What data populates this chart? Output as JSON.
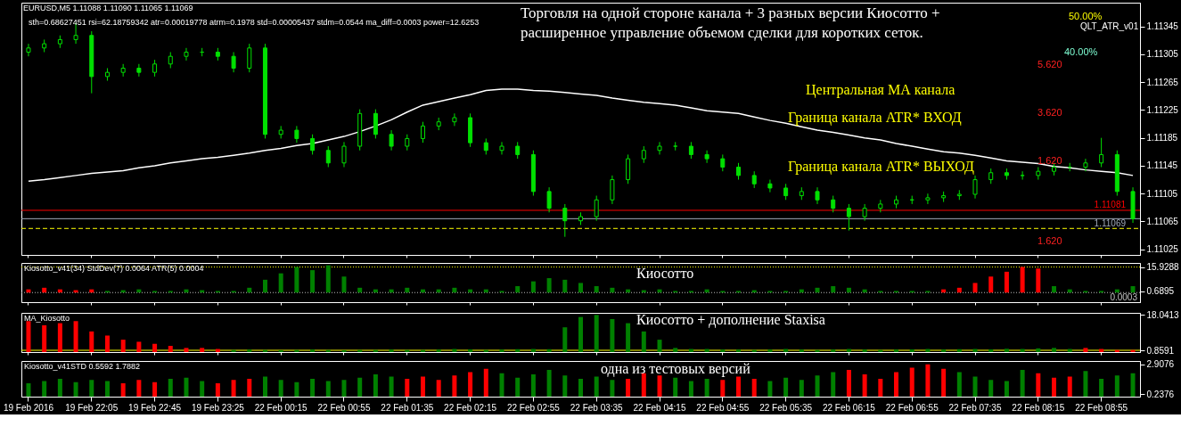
{
  "chart_data": [
    {
      "type": "candlestick",
      "title": "Торговля на одной стороне канала + 3 разных версии Киосотто +",
      "subtitle": "расширенное управление объемом сделки для коротких сеток.",
      "categories": [
        "19 Feb 2016",
        null,
        null,
        null,
        "19 Feb 22:05",
        null,
        null,
        null,
        "19 Feb 22:45",
        null,
        null,
        null,
        "19 Feb 23:25",
        null,
        null,
        null,
        "22 Feb 00:15",
        null,
        null,
        null,
        "22 Feb 00:55",
        null,
        null,
        null,
        "22 Feb 01:35",
        null,
        null,
        null,
        "22 Feb 02:15",
        null,
        null,
        null,
        "22 Feb 02:55",
        null,
        null,
        null,
        "22 Feb 03:35",
        null,
        null,
        null,
        "22 Feb 04:15",
        null,
        null,
        null,
        "22 Feb 04:55",
        null,
        null,
        null,
        "22 Feb 05:35",
        null,
        null,
        null,
        "22 Feb 06:15",
        null,
        null,
        null,
        "22 Feb 06:55",
        null,
        null,
        null,
        "22 Feb 07:35",
        null,
        null,
        null,
        "22 Feb 08:15",
        null,
        null,
        null,
        "22 Feb 08:55",
        null,
        null
      ],
      "ohlc": [
        [
          1.11308,
          1.1132,
          1.11302,
          1.11314
        ],
        [
          1.11314,
          1.11326,
          1.11308,
          1.1132
        ],
        [
          1.1132,
          1.11332,
          1.11314,
          1.11326
        ],
        [
          1.11326,
          1.1135,
          1.1132,
          1.11332
        ],
        [
          1.11332,
          1.11338,
          1.11249,
          1.11273
        ],
        [
          1.11273,
          1.11285,
          1.11267,
          1.11279
        ],
        [
          1.11279,
          1.11291,
          1.11273,
          1.11285
        ],
        [
          1.11285,
          1.11291,
          1.11273,
          1.11279
        ],
        [
          1.11279,
          1.11297,
          1.11273,
          1.11291
        ],
        [
          1.11291,
          1.11308,
          1.11285,
          1.11302
        ],
        [
          1.11302,
          1.11314,
          1.11296,
          1.11308
        ],
        [
          1.11308,
          1.11314,
          1.11302,
          1.11308
        ],
        [
          1.11308,
          1.11314,
          1.11296,
          1.11302
        ],
        [
          1.11302,
          1.11308,
          1.11279,
          1.11285
        ],
        [
          1.11285,
          1.1132,
          1.11279,
          1.11314
        ],
        [
          1.11314,
          1.1132,
          1.11184,
          1.1119
        ],
        [
          1.1119,
          1.11202,
          1.11184,
          1.11196
        ],
        [
          1.11196,
          1.11202,
          1.11178,
          1.11184
        ],
        [
          1.11184,
          1.1119,
          1.11161,
          1.11167
        ],
        [
          1.11167,
          1.11173,
          1.11143,
          1.11149
        ],
        [
          1.11149,
          1.11179,
          1.11143,
          1.11173
        ],
        [
          1.11173,
          1.11226,
          1.11167,
          1.1122
        ],
        [
          1.1122,
          1.11226,
          1.11184,
          1.1119
        ],
        [
          1.1119,
          1.11196,
          1.11167,
          1.11173
        ],
        [
          1.11173,
          1.1119,
          1.11167,
          1.11184
        ],
        [
          1.11184,
          1.11208,
          1.11178,
          1.11202
        ],
        [
          1.11202,
          1.11214,
          1.11196,
          1.11208
        ],
        [
          1.11208,
          1.1122,
          1.11202,
          1.11214
        ],
        [
          1.11214,
          1.1122,
          1.11172,
          1.11178
        ],
        [
          1.11178,
          1.11184,
          1.11161,
          1.11167
        ],
        [
          1.11167,
          1.11179,
          1.11161,
          1.11173
        ],
        [
          1.11173,
          1.11179,
          1.11155,
          1.11161
        ],
        [
          1.11161,
          1.11167,
          1.11102,
          1.11108
        ],
        [
          1.11108,
          1.11114,
          1.11078,
          1.11084
        ],
        [
          1.11084,
          1.1109,
          1.11043,
          1.11066
        ],
        [
          1.11066,
          1.11078,
          1.1106,
          1.11072
        ],
        [
          1.11072,
          1.11102,
          1.11066,
          1.11096
        ],
        [
          1.11096,
          1.11131,
          1.1109,
          1.11125
        ],
        [
          1.11125,
          1.11161,
          1.11119,
          1.11155
        ],
        [
          1.11155,
          1.11173,
          1.11149,
          1.11167
        ],
        [
          1.11167,
          1.11179,
          1.11161,
          1.11173
        ],
        [
          1.11173,
          1.11179,
          1.11167,
          1.11173
        ],
        [
          1.11173,
          1.11179,
          1.11155,
          1.11161
        ],
        [
          1.11161,
          1.11167,
          1.11149,
          1.11155
        ],
        [
          1.11155,
          1.11161,
          1.11137,
          1.11143
        ],
        [
          1.11143,
          1.11149,
          1.11125,
          1.11131
        ],
        [
          1.11131,
          1.11137,
          1.11113,
          1.11119
        ],
        [
          1.11119,
          1.11125,
          1.11107,
          1.11113
        ],
        [
          1.11113,
          1.11119,
          1.11096,
          1.11102
        ],
        [
          1.11102,
          1.11114,
          1.11096,
          1.11108
        ],
        [
          1.11108,
          1.11114,
          1.1109,
          1.11096
        ],
        [
          1.11096,
          1.11102,
          1.11078,
          1.11084
        ],
        [
          1.11084,
          1.1109,
          1.11052,
          1.11072
        ],
        [
          1.11072,
          1.1109,
          1.11066,
          1.11084
        ],
        [
          1.11084,
          1.11096,
          1.11078,
          1.1109
        ],
        [
          1.1109,
          1.11102,
          1.11084,
          1.11096
        ],
        [
          1.11096,
          1.11102,
          1.1109,
          1.11096
        ],
        [
          1.11096,
          1.11105,
          1.1109,
          1.11099
        ],
        [
          1.11099,
          1.11108,
          1.11093,
          1.11102
        ],
        [
          1.11102,
          1.1111,
          1.11096,
          1.11104
        ],
        [
          1.11104,
          1.11131,
          1.11098,
          1.11125
        ],
        [
          1.11125,
          1.11141,
          1.11119,
          1.11135
        ],
        [
          1.11135,
          1.11141,
          1.11125,
          1.11131
        ],
        [
          1.11131,
          1.11137,
          1.11125,
          1.11131
        ],
        [
          1.11131,
          1.11143,
          1.11125,
          1.11137
        ],
        [
          1.11137,
          1.11149,
          1.11131,
          1.11143
        ],
        [
          1.11143,
          1.11149,
          1.11137,
          1.11143
        ],
        [
          1.11143,
          1.11155,
          1.11137,
          1.11149
        ],
        [
          1.11149,
          1.11185,
          1.11143,
          1.11161
        ],
        [
          1.11161,
          1.11167,
          1.11102,
          1.11108
        ],
        [
          1.11108,
          1.11114,
          1.11063,
          1.11069
        ]
      ],
      "color": "#00e000",
      "series": [
        {
          "type": "line",
          "color": "#ffffff",
          "values": [
            1.11123,
            1.11125,
            1.11128,
            1.11131,
            1.11134,
            1.11136,
            1.11138,
            1.11142,
            1.11145,
            1.11149,
            1.11152,
            1.11155,
            1.11157,
            1.1116,
            1.11163,
            1.11167,
            1.1117,
            1.11174,
            1.11177,
            1.11182,
            1.11187,
            1.11194,
            1.11202,
            1.11211,
            1.11222,
            1.11232,
            1.11237,
            1.11242,
            1.11247,
            1.11253,
            1.11255,
            1.11255,
            1.11253,
            1.11252,
            1.1125,
            1.11248,
            1.11246,
            1.11242,
            1.11239,
            1.11236,
            1.11234,
            1.11232,
            1.11228,
            1.11224,
            1.11222,
            1.1122,
            1.11215,
            1.1121,
            1.11206,
            1.11201,
            1.11196,
            1.11193,
            1.11189,
            1.11185,
            1.11182,
            1.11177,
            1.11173,
            1.11169,
            1.11165,
            1.11163,
            1.1116,
            1.11156,
            1.11152,
            1.1115,
            1.11148,
            1.11144,
            1.11142,
            1.11139,
            1.11137,
            1.11135,
            1.11131
          ]
        }
      ],
      "ylim": [
        1.11017,
        1.11379
      ],
      "yticks": [
        1.11025,
        1.11065,
        1.11105,
        1.11145,
        1.11185,
        1.11225,
        1.11265,
        1.11305,
        1.11345
      ],
      "ref_lines": [
        {
          "axis": "y",
          "value": 1.11081,
          "label": "1.11081",
          "color": "#ff0000",
          "line_style": "solid"
        },
        {
          "axis": "y",
          "value": 1.11069,
          "label": "1.11069",
          "color": "#a0a8b8",
          "line_style": "solid"
        },
        {
          "axis": "y",
          "value": 1.11055,
          "color": "#ffff00",
          "line_style": "dashed"
        }
      ],
      "annotations": [
        "EURUSD,M5  1.11088 1.11090 1.11065 1.11069",
        "sth=0.68627451 rsi=62.18759342 atr=0.00019778 atrm=0.1978 std=0.00005437 stdm=0.0544 ma_diff=0.0003 power=12.6253",
        "Центральная МА канала",
        "Граница канала ATR*  ВХОД",
        "Граница канала ATR*  ВЫХОД",
        "50.00%",
        "40.00%",
        "5.620",
        "3.620",
        "1.620",
        "1.620",
        "QLT_ATR_v01"
      ],
      "tick_labels": "y",
      "grid": false
    },
    {
      "type": "bar",
      "title": "Kiosotto_v41(34)  StdDev(7) 0.0064  ATR(5) 0.0004",
      "values": [
        2,
        3,
        2,
        1.5,
        2,
        1,
        1.5,
        2,
        1,
        1,
        2,
        1.5,
        1,
        1,
        3,
        8,
        12,
        16,
        14,
        17,
        10,
        3,
        2,
        2,
        3,
        2,
        2,
        3,
        2,
        2,
        1,
        4,
        7,
        9,
        8,
        6,
        4,
        3,
        2,
        1.5,
        2,
        1,
        1,
        2,
        1,
        1,
        1.5,
        1,
        1,
        2,
        3,
        4,
        3,
        2,
        1,
        1,
        1,
        1,
        2,
        3,
        6,
        10,
        13,
        16,
        15,
        4,
        2,
        1,
        1,
        2,
        4
      ],
      "colors": [
        "#ff0000",
        "#ff0000",
        "#ff0000",
        "#ff0000",
        "#ff0000",
        "#008000",
        "#008000",
        "#008000",
        "#008000",
        "#008000",
        "#008000",
        "#008000",
        "#008000",
        "#008000",
        "#008000",
        "#008000",
        "#008000",
        "#008000",
        "#008000",
        "#008000",
        "#008000",
        "#008000",
        "#008000",
        "#008000",
        "#008000",
        "#008000",
        "#008000",
        "#008000",
        "#008000",
        "#008000",
        "#008000",
        "#008000",
        "#008000",
        "#008000",
        "#008000",
        "#008000",
        "#008000",
        "#008000",
        "#008000",
        "#008000",
        "#008000",
        "#008000",
        "#008000",
        "#008000",
        "#008000",
        "#008000",
        "#008000",
        "#008000",
        "#008000",
        "#008000",
        "#008000",
        "#008000",
        "#008000",
        "#008000",
        "#008000",
        "#008000",
        "#008000",
        "#008000",
        "#ff0000",
        "#ff0000",
        "#ff0000",
        "#ff0000",
        "#ff0000",
        "#ff0000",
        "#ff0000",
        "#008000",
        "#008000",
        "#008000",
        "#008000",
        "#008000",
        "#008000"
      ],
      "ylim": [
        -6,
        18.5
      ],
      "yticks": [
        15.9288,
        0.6895
      ],
      "ref_lines": [
        {
          "axis": "y",
          "value": 0.0003,
          "label": "0.0003",
          "color": "#c0c0c0",
          "line_style": "dotted"
        },
        {
          "axis": "y",
          "value": 15.9288,
          "color": "#ffff00",
          "line_style": "dotted"
        }
      ],
      "annotations": [
        "Киосотто"
      ],
      "tick_labels": "y",
      "grid": false
    },
    {
      "type": "bar",
      "title": "MA_Kiosotto",
      "values": [
        15,
        13,
        14,
        15,
        10,
        8,
        6,
        5,
        4,
        3,
        2,
        2,
        1.5,
        1,
        1.2,
        1,
        0.9,
        1,
        1.2,
        1,
        0.9,
        1,
        1,
        1.2,
        1,
        1,
        1.2,
        1.5,
        1.3,
        1,
        1.2,
        1.4,
        1.5,
        1.4,
        12,
        17,
        18,
        16,
        14,
        10,
        6,
        2,
        1.5,
        1.5,
        1.2,
        1.2,
        1,
        1.2,
        1.5,
        1.2,
        1,
        1.2,
        1.5,
        1.2,
        1,
        1.2,
        1.3,
        1.5,
        1.2,
        1.4,
        1.5,
        1.3,
        1.6,
        1.5,
        1.8,
        2,
        1.5,
        2,
        1.5,
        1,
        1
      ],
      "colors": [
        "#ff0000",
        "#ff0000",
        "#ff0000",
        "#ff0000",
        "#ff0000",
        "#ff0000",
        "#ff0000",
        "#ff0000",
        "#ff0000",
        "#ff0000",
        "#ff0000",
        "#ff0000",
        "#ff0000",
        "#008000",
        "#008000",
        "#008000",
        "#008000",
        "#008000",
        "#008000",
        "#008000",
        "#008000",
        "#008000",
        "#008000",
        "#008000",
        "#008000",
        "#008000",
        "#008000",
        "#008000",
        "#008000",
        "#008000",
        "#008000",
        "#008000",
        "#008000",
        "#008000",
        "#008000",
        "#008000",
        "#008000",
        "#008000",
        "#008000",
        "#008000",
        "#008000",
        "#008000",
        "#008000",
        "#008000",
        "#008000",
        "#008000",
        "#008000",
        "#008000",
        "#008000",
        "#008000",
        "#008000",
        "#008000",
        "#008000",
        "#008000",
        "#008000",
        "#008000",
        "#008000",
        "#008000",
        "#008000",
        "#008000",
        "#008000",
        "#008000",
        "#008000",
        "#008000",
        "#008000",
        "#008000",
        "#008000",
        "#ff0000",
        "#ff0000",
        "#ff0000",
        "#ff0000"
      ],
      "ylim": [
        0,
        19
      ],
      "yticks": [
        0.8591,
        18.0413
      ],
      "ref_lines": [
        {
          "axis": "y",
          "value": 0.8591,
          "color": "#ffff00",
          "line_style": "solid"
        }
      ],
      "annotations": [
        "Киосотто + дополнение Staxisa"
      ],
      "tick_labels": "y",
      "grid": false
    },
    {
      "type": "bar",
      "title": "Kiosotto_v41STD 0.5592 1.7882",
      "values": [
        1.2,
        1.4,
        1.6,
        1.3,
        1.5,
        1.4,
        1.2,
        1.5,
        1.3,
        1.6,
        1.7,
        1.4,
        1.2,
        1.5,
        1.6,
        1.8,
        1.5,
        1.3,
        1.6,
        1.4,
        1.5,
        1.7,
        2.0,
        1.8,
        1.6,
        1.8,
        1.5,
        1.9,
        2.2,
        2.5,
        2.1,
        1.7,
        2.0,
        2.4,
        1.9,
        1.6,
        1.8,
        1.5,
        1.6,
        2.1,
        1.9,
        1.7,
        1.4,
        1.6,
        1.5,
        1.8,
        1.6,
        1.4,
        1.7,
        1.5,
        1.9,
        2.2,
        2.4,
        2.0,
        1.6,
        2.2,
        2.6,
        2.9,
        2.5,
        2.2,
        1.8,
        1.5,
        1.4,
        2.4,
        2.1,
        1.7,
        1.8,
        2.3,
        1.6,
        1.9,
        2.1
      ],
      "colors": [
        "#008000",
        "#008000",
        "#008000",
        "#008000",
        "#008000",
        "#008000",
        "#ff0000",
        "#ff0000",
        "#ff0000",
        "#008000",
        "#008000",
        "#008000",
        "#ff0000",
        "#ff0000",
        "#ff0000",
        "#008000",
        "#008000",
        "#008000",
        "#008000",
        "#008000",
        "#008000",
        "#008000",
        "#008000",
        "#008000",
        "#ff0000",
        "#ff0000",
        "#ff0000",
        "#ff0000",
        "#ff0000",
        "#ff0000",
        "#008000",
        "#008000",
        "#008000",
        "#008000",
        "#008000",
        "#008000",
        "#008000",
        "#008000",
        "#ff0000",
        "#ff0000",
        "#ff0000",
        "#008000",
        "#008000",
        "#008000",
        "#ff0000",
        "#ff0000",
        "#ff0000",
        "#008000",
        "#008000",
        "#008000",
        "#008000",
        "#008000",
        "#ff0000",
        "#ff0000",
        "#ff0000",
        "#ff0000",
        "#ff0000",
        "#ff0000",
        "#ff0000",
        "#008000",
        "#008000",
        "#008000",
        "#008000",
        "#008000",
        "#ff0000",
        "#ff0000",
        "#ff0000",
        "#008000",
        "#008000",
        "#008000",
        "#008000"
      ],
      "ylim": [
        0,
        3.2
      ],
      "yticks": [
        0.2376,
        2.9076
      ],
      "annotations": [
        "одна из тестовых версий"
      ],
      "grid": false
    }
  ]
}
